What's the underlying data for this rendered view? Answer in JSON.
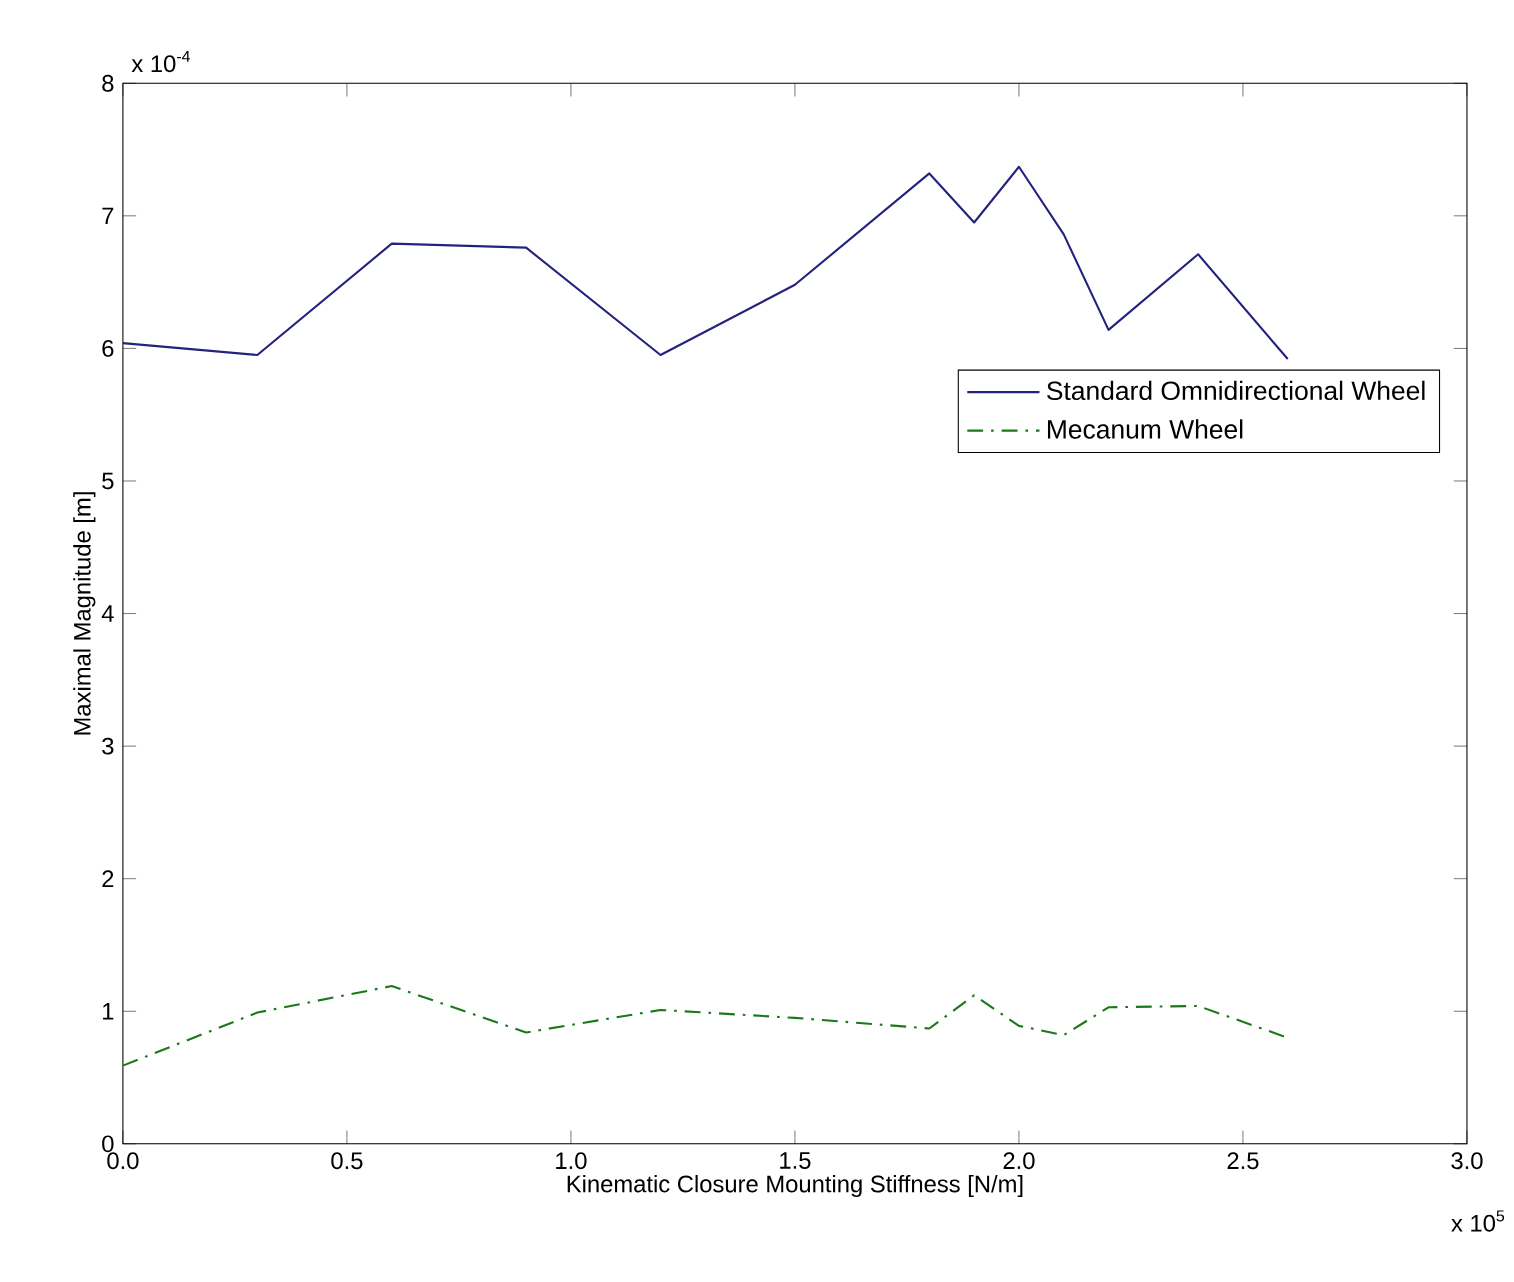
{
  "chart_data": {
    "type": "line",
    "xlabel": "Kinematic Closure Mounting Stiffness [N/m]",
    "ylabel": "Maximal Magnitude [m]",
    "annotations": [
      "x 10$^{-4}$",
      "x 10$^{5}$"
    ],
    "xlim": [
      0,
      3
    ],
    "ylim": [
      0,
      8
    ],
    "xticks": [
      {
        "value": 0,
        "label": "0.0"
      },
      {
        "value": 0.5,
        "label": "0.5"
      },
      {
        "value": 1,
        "label": "1.0"
      },
      {
        "value": 1.5,
        "label": "1.5"
      },
      {
        "value": 2,
        "label": "2.0"
      },
      {
        "value": 2.5,
        "label": "2.5"
      },
      {
        "value": 3,
        "label": "3.0"
      }
    ],
    "yticks": [
      0,
      1,
      2,
      3,
      4,
      5,
      6,
      7,
      8
    ],
    "grid": false,
    "legend": "right",
    "series": [
      {
        "name": "Standard Omnidirectional Wheel",
        "color": "#23237f",
        "line_style": "solid",
        "x": [
          0,
          0.3,
          0.6,
          0.9,
          1.2,
          1.5,
          1.8,
          1.9,
          2.0,
          2.1,
          2.2,
          2.4,
          2.6
        ],
        "values": [
          6.04,
          5.95,
          6.79,
          6.76,
          5.95,
          6.48,
          7.32,
          6.95,
          7.37,
          6.86,
          6.14,
          6.71,
          5.92
        ]
      },
      {
        "name": "Mecanum Wheel",
        "color": "#1a7a1a",
        "line_style": "dashdot",
        "x": [
          0,
          0.3,
          0.6,
          0.9,
          1.2,
          1.5,
          1.8,
          1.9,
          2.0,
          2.1,
          2.2,
          2.4,
          2.6
        ],
        "values": [
          0.59,
          0.99,
          1.19,
          0.84,
          1.01,
          0.95,
          0.87,
          1.12,
          0.89,
          0.82,
          1.03,
          1.04,
          0.8
        ]
      }
    ]
  }
}
